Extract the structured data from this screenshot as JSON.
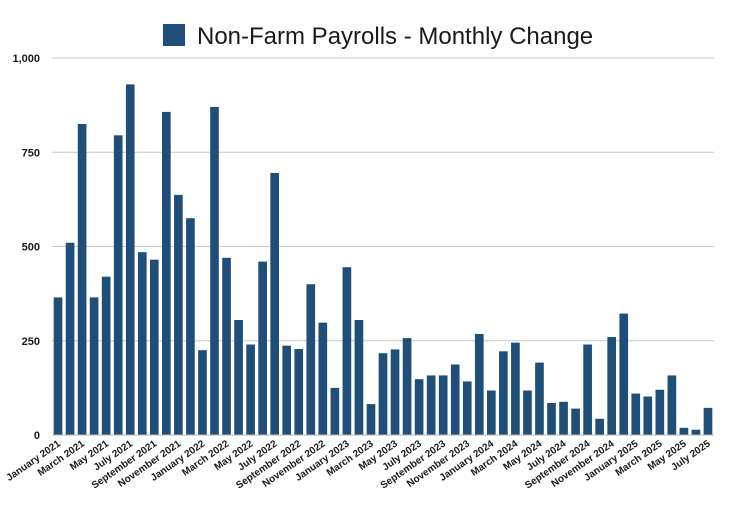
{
  "chart_data": {
    "type": "bar",
    "title": "Non-Farm Payrolls - Monthly Change",
    "legend": "Non-Farm Payrolls - Monthly Change",
    "legend_position": "top-center",
    "ylim": [
      0,
      1000
    ],
    "yticks": [
      0,
      250,
      500,
      750,
      1000
    ],
    "ytick_labels": [
      "0",
      "250",
      "500",
      "750",
      "1,000"
    ],
    "grid": true,
    "xlabel": "",
    "ylabel": "",
    "colors": {
      "bar": "#1f4e79",
      "grid": "#c8c8c8",
      "axis": "#b5b5b5"
    },
    "categories": [
      "January 2021",
      "February 2021",
      "March 2021",
      "April 2021",
      "May 2021",
      "June 2021",
      "July 2021",
      "August 2021",
      "September 2021",
      "October 2021",
      "November 2021",
      "December 2021",
      "January 2022",
      "February 2022",
      "March 2022",
      "April 2022",
      "May 2022",
      "June 2022",
      "July 2022",
      "August 2022",
      "September 2022",
      "October 2022",
      "November 2022",
      "December 2022",
      "January 2023",
      "February 2023",
      "March 2023",
      "April 2023",
      "May 2023",
      "June 2023",
      "July 2023",
      "August 2023",
      "September 2023",
      "October 2023",
      "November 2023",
      "December 2023",
      "January 2024",
      "February 2024",
      "March 2024",
      "April 2024",
      "May 2024",
      "June 2024",
      "July 2024",
      "August 2024",
      "September 2024",
      "October 2024",
      "November 2024",
      "December 2024",
      "January 2025",
      "February 2025",
      "March 2025",
      "April 2025",
      "May 2025",
      "June 2025",
      "July 2025"
    ],
    "x_tick_labels": [
      "January 2021",
      "March 2021",
      "May 2021",
      "July 2021",
      "September 2021",
      "November 2021",
      "January 2022",
      "March 2022",
      "May 2022",
      "July 2022",
      "September 2022",
      "November 2022",
      "January 2023",
      "March 2023",
      "May 2023",
      "July 2023",
      "September 2023",
      "November 2023",
      "January 2024",
      "March 2024",
      "May 2024",
      "July 2024",
      "September 2024",
      "November 2024",
      "January 2025",
      "March 2025",
      "May 2025",
      "July 2025"
    ],
    "series": [
      {
        "name": "Non-Farm Payrolls - Monthly Change",
        "values": [
          365,
          510,
          825,
          365,
          420,
          795,
          930,
          485,
          465,
          857,
          637,
          575,
          225,
          870,
          470,
          305,
          240,
          460,
          695,
          237,
          228,
          400,
          298,
          125,
          445,
          305,
          82,
          217,
          227,
          257,
          148,
          158,
          158,
          187,
          142,
          268,
          118,
          222,
          245,
          118,
          192,
          85,
          88,
          70,
          240,
          43,
          260,
          322,
          110,
          102,
          120,
          158,
          19,
          14,
          72
        ]
      }
    ]
  }
}
